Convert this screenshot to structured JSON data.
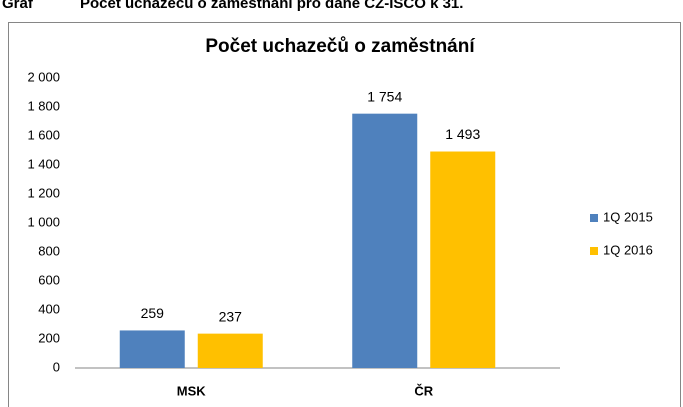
{
  "caption": {
    "number": "Graf",
    "text": "Počet uchazečů o zaměstnání pro dané CZ-ISCO k 31."
  },
  "chart_data": {
    "type": "bar",
    "title": "Počet uchazečů o zaměstnání",
    "categories": [
      "MSK",
      "ČR"
    ],
    "series": [
      {
        "name": "1Q 2015",
        "color": "#4f81bd",
        "values": [
          259,
          1754
        ],
        "value_labels": [
          "259",
          "1 754"
        ]
      },
      {
        "name": "1Q 2016",
        "color": "#ffc000",
        "values": [
          237,
          1493
        ],
        "value_labels": [
          "237",
          "1 493"
        ]
      }
    ],
    "ylim": [
      0,
      2000
    ],
    "yticks": [
      0,
      200,
      400,
      600,
      800,
      {
        "value": 1000,
        "label": "1 000"
      },
      {
        "value": 1200,
        "label": "1 200"
      },
      {
        "value": 1400,
        "label": "1 400"
      },
      {
        "value": 1600,
        "label": "1 600"
      },
      {
        "value": 1800,
        "label": "1 800"
      },
      {
        "value": 2000,
        "label": "2 000"
      }
    ],
    "grid": false,
    "legend": "right"
  }
}
